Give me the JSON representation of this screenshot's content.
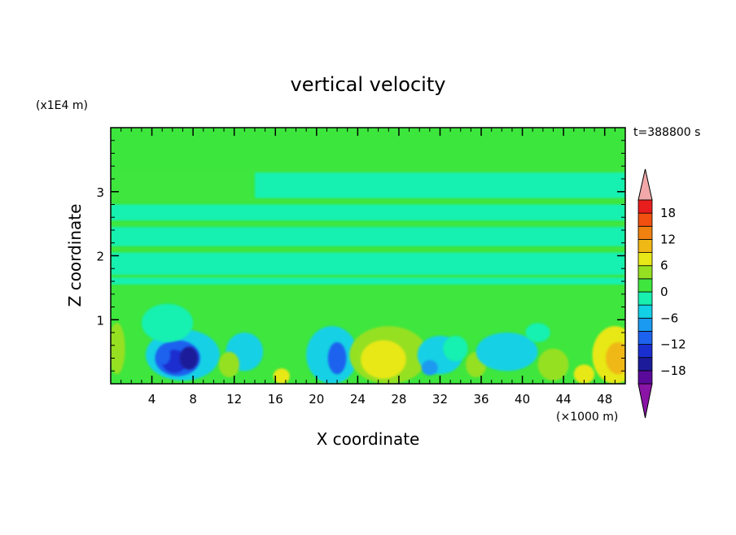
{
  "chart_data": {
    "type": "heatmap",
    "title": "vertical velocity",
    "xlabel": "X coordinate",
    "ylabel": "Z coordinate",
    "x_unit": "(×1000 m)",
    "y_unit": "(x1E4 m)",
    "time_label": "t=388800 s",
    "xlim": [
      0,
      50
    ],
    "ylim": [
      0,
      4
    ],
    "x_ticks": [
      4,
      8,
      12,
      16,
      20,
      24,
      28,
      32,
      36,
      40,
      44,
      48
    ],
    "y_ticks": [
      1,
      2,
      3
    ],
    "x_tick_labels": [
      "4",
      "8",
      "12",
      "16",
      "20",
      "24",
      "28",
      "32",
      "36",
      "40",
      "44",
      "48"
    ],
    "y_tick_labels": [
      "1",
      "2",
      "3"
    ],
    "colorbar": {
      "levels": [
        -21,
        -18,
        -15,
        -12,
        -9,
        -6,
        -3,
        0,
        3,
        6,
        9,
        12,
        15,
        18,
        21
      ],
      "colors": [
        "#5a0a9a",
        "#1c1c9a",
        "#1a2fcf",
        "#1d62ee",
        "#1a9af0",
        "#12d0e6",
        "#18f0b0",
        "#3ee63e",
        "#96e022",
        "#e8e818",
        "#f0b814",
        "#f08010",
        "#f05010",
        "#e81e1e"
      ],
      "under_color": "#8a14a6",
      "over_color": "#f2a8a8",
      "tick_values": [
        18,
        12,
        6,
        0,
        -6,
        -12,
        -18
      ],
      "tick_labels": [
        "18",
        "12",
        "6",
        "0",
        "−6",
        "−12",
        "−18"
      ]
    },
    "background_value": 1,
    "bands": [
      {
        "x": [
          0,
          50
        ],
        "z": [
          3.35,
          4.0
        ],
        "value": 1
      },
      {
        "x": [
          14,
          50
        ],
        "z": [
          2.9,
          3.3
        ],
        "value": -2
      },
      {
        "x": [
          0,
          50
        ],
        "z": [
          2.55,
          2.8
        ],
        "value": -2
      },
      {
        "x": [
          0,
          50
        ],
        "z": [
          2.15,
          2.45
        ],
        "value": -2
      },
      {
        "x": [
          0,
          50
        ],
        "z": [
          1.7,
          2.05
        ],
        "value": -2
      },
      {
        "x": [
          0,
          50
        ],
        "z": [
          1.55,
          1.66
        ],
        "value": -2
      }
    ],
    "cells": [
      {
        "x": 7,
        "z": 0.45,
        "rx": 3.6,
        "rz": 0.4,
        "value": -6
      },
      {
        "x": 6.5,
        "z": 0.4,
        "rx": 2.2,
        "rz": 0.28,
        "value": -10
      },
      {
        "x": 6.2,
        "z": 0.35,
        "rx": 1.2,
        "rz": 0.18,
        "value": -14
      },
      {
        "x": 7.6,
        "z": 0.4,
        "rx": 0.9,
        "rz": 0.18,
        "value": -16
      },
      {
        "x": 5.2,
        "z": 0.45,
        "rx": 0.6,
        "rz": 0.15,
        "value": -12
      },
      {
        "x": 5.5,
        "z": 0.95,
        "rx": 2.5,
        "rz": 0.3,
        "value": -3
      },
      {
        "x": 0.6,
        "z": 0.55,
        "rx": 0.8,
        "rz": 0.4,
        "value": 5
      },
      {
        "x": 13,
        "z": 0.5,
        "rx": 1.8,
        "rz": 0.3,
        "value": -4
      },
      {
        "x": 11.5,
        "z": 0.3,
        "rx": 1.0,
        "rz": 0.2,
        "value": 3
      },
      {
        "x": 16.6,
        "z": 0.12,
        "rx": 0.8,
        "rz": 0.12,
        "value": 7
      },
      {
        "x": 21.5,
        "z": 0.45,
        "rx": 2.5,
        "rz": 0.45,
        "value": -5
      },
      {
        "x": 22,
        "z": 0.4,
        "rx": 0.9,
        "rz": 0.25,
        "value": -10
      },
      {
        "x": 27,
        "z": 0.45,
        "rx": 3.8,
        "rz": 0.45,
        "value": 4
      },
      {
        "x": 26.5,
        "z": 0.38,
        "rx": 2.2,
        "rz": 0.3,
        "value": 6
      },
      {
        "x": 32,
        "z": 0.45,
        "rx": 2.2,
        "rz": 0.3,
        "value": -5
      },
      {
        "x": 31,
        "z": 0.25,
        "rx": 0.8,
        "rz": 0.12,
        "value": -9
      },
      {
        "x": 35.5,
        "z": 0.3,
        "rx": 1.0,
        "rz": 0.2,
        "value": 3
      },
      {
        "x": 38.5,
        "z": 0.5,
        "rx": 3.0,
        "rz": 0.3,
        "value": -5
      },
      {
        "x": 43,
        "z": 0.3,
        "rx": 1.5,
        "rz": 0.25,
        "value": 3
      },
      {
        "x": 41.5,
        "z": 0.8,
        "rx": 1.2,
        "rz": 0.15,
        "value": -3
      },
      {
        "x": 49,
        "z": 0.45,
        "rx": 2.2,
        "rz": 0.45,
        "value": 6
      },
      {
        "x": 49.3,
        "z": 0.4,
        "rx": 1.2,
        "rz": 0.25,
        "value": 10
      },
      {
        "x": 46,
        "z": 0.15,
        "rx": 1.0,
        "rz": 0.15,
        "value": 7
      },
      {
        "x": 33.5,
        "z": 0.55,
        "rx": 1.2,
        "rz": 0.2,
        "value": -3
      }
    ]
  }
}
